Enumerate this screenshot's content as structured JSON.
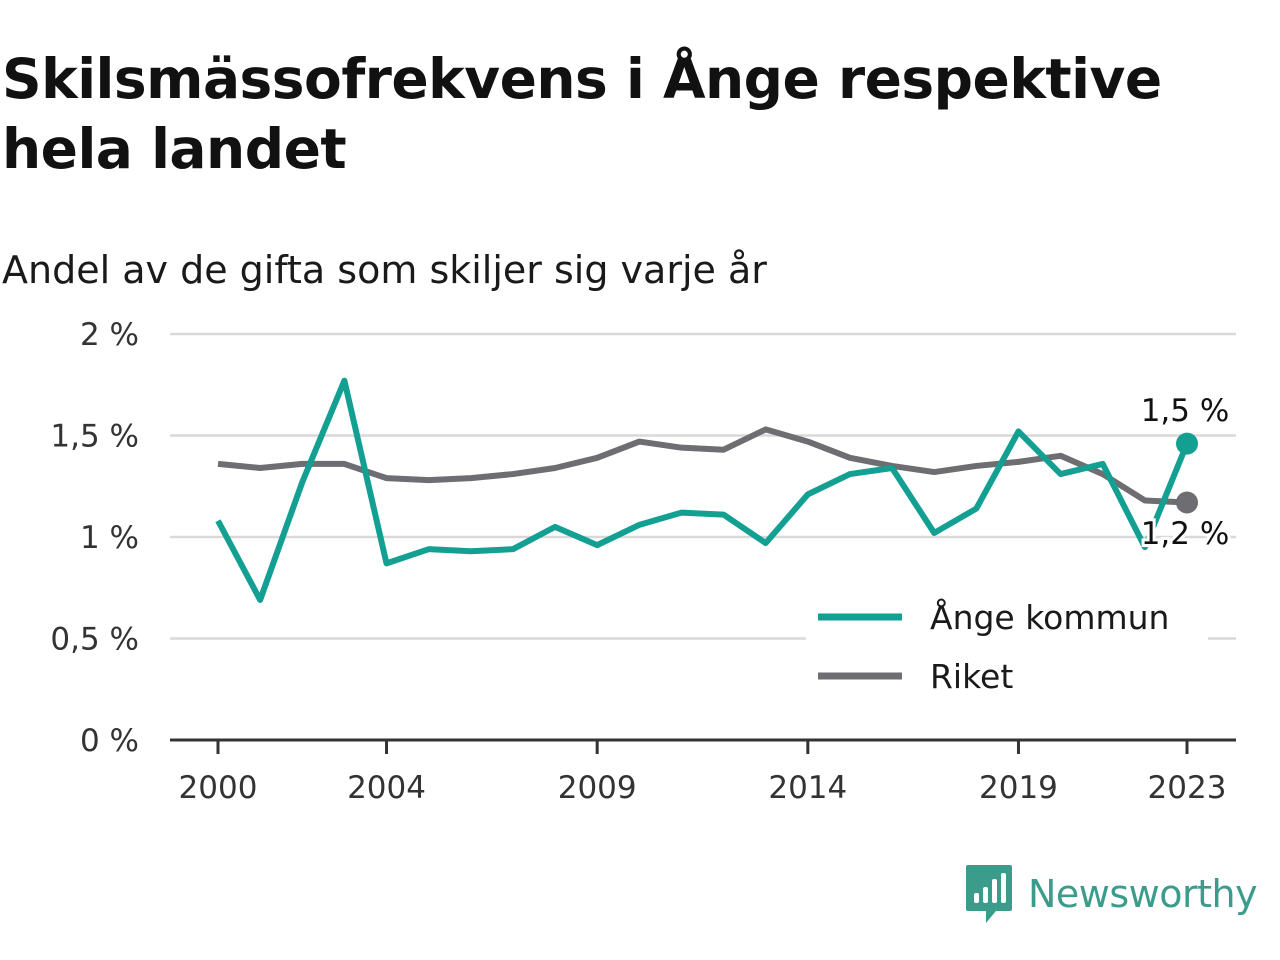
{
  "title": "Skilsmässofrekvens i Ånge respektive hela landet",
  "subtitle": "Andel av de gifta som skiljer sig varje år",
  "brand": "Newsworthy",
  "colors": {
    "ange": "#13a093",
    "riket": "#6e6d72",
    "grid": "#d9d9d9",
    "axis": "#333333",
    "brand": "#3c9c8c"
  },
  "chart_data": {
    "type": "line",
    "x": [
      2000,
      2001,
      2002,
      2003,
      2004,
      2005,
      2006,
      2007,
      2008,
      2009,
      2010,
      2011,
      2012,
      2013,
      2014,
      2015,
      2016,
      2017,
      2018,
      2019,
      2020,
      2021,
      2022,
      2023
    ],
    "x_ticks": [
      2000,
      2004,
      2009,
      2014,
      2019,
      2023
    ],
    "y_ticks": [
      0,
      0.5,
      1,
      1.5,
      2
    ],
    "y_tick_labels": [
      "0 %",
      "0,5 %",
      "1 %",
      "1,5 %",
      "2 %"
    ],
    "ylim": [
      0,
      2
    ],
    "grid": true,
    "legend_position": "bottom-right",
    "series": [
      {
        "name": "Ånge kommun",
        "color": "#13a093",
        "values": [
          1.08,
          0.69,
          1.27,
          1.77,
          0.87,
          0.94,
          0.93,
          0.94,
          1.05,
          0.96,
          1.06,
          1.12,
          1.11,
          0.97,
          1.21,
          1.31,
          1.34,
          1.02,
          1.14,
          1.52,
          1.31,
          1.36,
          0.95,
          1.46
        ],
        "end_label": "1,5 %"
      },
      {
        "name": "Riket",
        "color": "#6e6d72",
        "values": [
          1.36,
          1.34,
          1.36,
          1.36,
          1.29,
          1.28,
          1.29,
          1.31,
          1.34,
          1.39,
          1.47,
          1.44,
          1.43,
          1.53,
          1.47,
          1.39,
          1.35,
          1.32,
          1.35,
          1.37,
          1.4,
          1.31,
          1.18,
          1.17
        ],
        "end_label": "1,2 %"
      }
    ]
  }
}
